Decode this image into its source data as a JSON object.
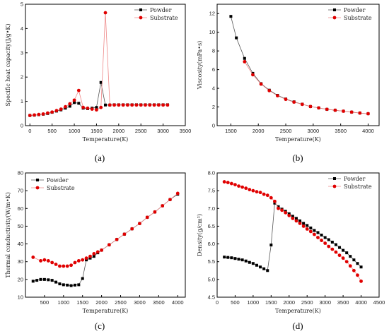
{
  "chart_data": [
    {
      "id": "a",
      "type": "line",
      "caption": "(a)",
      "xlabel": "Temperature(K)",
      "ylabel": "Specific heat capacity(J/g•K)",
      "xlim": [
        -100,
        3500
      ],
      "ylim": [
        0,
        5
      ],
      "xticks": [
        0,
        500,
        1000,
        1500,
        2000,
        2500,
        3000,
        3500
      ],
      "yticks": [
        0,
        1,
        2,
        3,
        4,
        5
      ],
      "legend_position": "top-right",
      "series": [
        {
          "name": "Powder",
          "color": "#000000",
          "marker": "square",
          "x": [
            0,
            100,
            200,
            300,
            400,
            500,
            600,
            700,
            800,
            900,
            1000,
            1100,
            1200,
            1300,
            1400,
            1500,
            1600,
            1700,
            1800,
            1900,
            2000,
            2100,
            2200,
            2300,
            2400,
            2500,
            2600,
            2700,
            2800,
            2900,
            3000,
            3100
          ],
          "y": [
            0.42,
            0.43,
            0.45,
            0.47,
            0.5,
            0.55,
            0.6,
            0.65,
            0.72,
            0.8,
            0.95,
            0.92,
            0.72,
            0.7,
            0.72,
            0.75,
            1.78,
            0.85,
            0.85,
            0.86,
            0.86,
            0.86,
            0.86,
            0.86,
            0.86,
            0.86,
            0.86,
            0.86,
            0.86,
            0.86,
            0.86,
            0.86
          ]
        },
        {
          "name": "Substrate",
          "color": "#e00000",
          "marker": "circle",
          "x": [
            0,
            100,
            200,
            300,
            400,
            500,
            600,
            700,
            800,
            900,
            1000,
            1100,
            1200,
            1300,
            1400,
            1500,
            1600,
            1700,
            1800,
            1900,
            2000,
            2100,
            2200,
            2300,
            2400,
            2500,
            2600,
            2700,
            2800,
            2900,
            3000,
            3100
          ],
          "y": [
            0.42,
            0.44,
            0.46,
            0.48,
            0.52,
            0.56,
            0.62,
            0.68,
            0.78,
            0.9,
            1.05,
            1.45,
            0.75,
            0.72,
            0.68,
            0.65,
            0.75,
            4.65,
            0.85,
            0.85,
            0.85,
            0.85,
            0.85,
            0.85,
            0.85,
            0.85,
            0.85,
            0.85,
            0.85,
            0.85,
            0.85,
            0.85
          ]
        }
      ]
    },
    {
      "id": "b",
      "type": "line",
      "caption": "(b)",
      "xlabel": "Temperature(K)",
      "ylabel": "Viscosity(mPa•s)",
      "xlim": [
        1250,
        4200
      ],
      "ylim": [
        0,
        13
      ],
      "xticks": [
        1500,
        2000,
        2500,
        3000,
        3500,
        4000
      ],
      "yticks": [
        0,
        2,
        4,
        6,
        8,
        10,
        12
      ],
      "legend_position": "top-right",
      "series": [
        {
          "name": "Powder",
          "color": "#000000",
          "marker": "square",
          "x": [
            1500,
            1600,
            1750,
            1900,
            2050,
            2200,
            2350,
            2500,
            2650,
            2800,
            2950,
            3100,
            3250,
            3400,
            3550,
            3700,
            3850,
            4000
          ],
          "y": [
            11.7,
            9.4,
            7.2,
            5.6,
            4.5,
            3.8,
            3.25,
            2.85,
            2.55,
            2.3,
            2.05,
            1.9,
            1.75,
            1.65,
            1.55,
            1.45,
            1.35,
            1.28
          ]
        },
        {
          "name": "Substrate",
          "color": "#e00000",
          "marker": "circle",
          "x": [
            1750,
            1900,
            2050,
            2200,
            2350,
            2500,
            2650,
            2800,
            2950,
            3100,
            3250,
            3400,
            3550,
            3700,
            3850,
            4000
          ],
          "y": [
            6.85,
            5.45,
            4.45,
            3.75,
            3.2,
            2.82,
            2.52,
            2.28,
            2.05,
            1.9,
            1.75,
            1.65,
            1.55,
            1.45,
            1.35,
            1.28
          ]
        }
      ]
    },
    {
      "id": "c",
      "type": "line",
      "caption": "(c)",
      "xlabel": "Temperature(K)",
      "ylabel": "Thermal conductivity(W/m•K)",
      "xlim": [
        0,
        4200
      ],
      "ylim": [
        10,
        80
      ],
      "xticks": [
        500,
        1000,
        1500,
        2000,
        2500,
        3000,
        3500,
        4000
      ],
      "yticks": [
        10,
        20,
        30,
        40,
        50,
        60,
        70,
        80
      ],
      "legend_position": "top-left",
      "series": [
        {
          "name": "Powder",
          "color": "#000000",
          "marker": "square",
          "x": [
            200,
            300,
            400,
            500,
            600,
            700,
            800,
            900,
            1000,
            1100,
            1200,
            1300,
            1400,
            1500,
            1600,
            1700,
            1800,
            1900,
            2000,
            2200,
            2400,
            2600,
            2800,
            3000,
            3200,
            3400,
            3600,
            3800,
            4000
          ],
          "y": [
            19,
            19.5,
            20,
            20,
            19.8,
            19.5,
            18.5,
            17.5,
            17,
            16.8,
            16.5,
            16.8,
            17,
            20.5,
            31,
            32,
            33,
            35,
            36.5,
            39.5,
            42.5,
            45.5,
            48.5,
            51.5,
            55,
            58,
            61.5,
            65,
            68
          ]
        },
        {
          "name": "Substrate",
          "color": "#e00000",
          "marker": "circle",
          "x": [
            200,
            400,
            500,
            600,
            700,
            800,
            900,
            1000,
            1100,
            1200,
            1300,
            1400,
            1500,
            1600,
            1700,
            1800,
            1900,
            2000,
            2200,
            2400,
            2600,
            2800,
            3000,
            3200,
            3400,
            3600,
            3800,
            4000
          ],
          "y": [
            32.5,
            30.5,
            31,
            30.5,
            29.5,
            28.5,
            27.5,
            27.5,
            27.5,
            28,
            29.5,
            30.5,
            31,
            32,
            33,
            34.5,
            35.5,
            36.5,
            39.5,
            42.5,
            45.5,
            48.5,
            51.5,
            55,
            58,
            61.5,
            65,
            68.5
          ]
        }
      ]
    },
    {
      "id": "d",
      "type": "line",
      "caption": "(d)",
      "xlabel": "Temperature(K)",
      "ylabel": "Density(g/cm³)",
      "xlim": [
        0,
        4500
      ],
      "ylim": [
        4.5,
        8.0
      ],
      "xticks": [
        0,
        500,
        1000,
        1500,
        2000,
        2500,
        3000,
        3500,
        4000,
        4500
      ],
      "yticks": [
        4.5,
        5.0,
        5.5,
        6.0,
        6.5,
        7.0,
        7.5,
        8.0
      ],
      "legend_position": "top-right",
      "series": [
        {
          "name": "Powder",
          "color": "#000000",
          "marker": "square",
          "x": [
            200,
            300,
            400,
            500,
            600,
            700,
            800,
            900,
            1000,
            1100,
            1200,
            1300,
            1400,
            1500,
            1600,
            1700,
            1800,
            1900,
            2000,
            2100,
            2200,
            2300,
            2400,
            2500,
            2600,
            2700,
            2800,
            2900,
            3000,
            3100,
            3200,
            3300,
            3400,
            3500,
            3600,
            3700,
            3800,
            3900,
            4000
          ],
          "y": [
            5.63,
            5.62,
            5.61,
            5.59,
            5.57,
            5.55,
            5.52,
            5.48,
            5.45,
            5.4,
            5.35,
            5.3,
            5.25,
            5.97,
            7.15,
            7.05,
            6.98,
            6.92,
            6.85,
            6.78,
            6.72,
            6.65,
            6.58,
            6.52,
            6.45,
            6.38,
            6.32,
            6.25,
            6.18,
            6.12,
            6.05,
            5.98,
            5.9,
            5.82,
            5.75,
            5.65,
            5.55,
            5.45,
            5.35
          ]
        },
        {
          "name": "Substrate",
          "color": "#e00000",
          "marker": "circle",
          "x": [
            200,
            300,
            400,
            500,
            600,
            700,
            800,
            900,
            1000,
            1100,
            1200,
            1300,
            1400,
            1500,
            1600,
            1700,
            1800,
            1900,
            2000,
            2100,
            2200,
            2300,
            2400,
            2500,
            2600,
            2700,
            2800,
            2900,
            3000,
            3100,
            3200,
            3300,
            3400,
            3500,
            3600,
            3700,
            3800,
            3900,
            4000
          ],
          "y": [
            7.75,
            7.73,
            7.7,
            7.67,
            7.63,
            7.6,
            7.57,
            7.53,
            7.5,
            7.47,
            7.45,
            7.4,
            7.37,
            7.3,
            7.2,
            7.0,
            6.95,
            6.88,
            6.8,
            6.72,
            6.65,
            6.58,
            6.5,
            6.42,
            6.35,
            6.27,
            6.18,
            6.1,
            6.02,
            5.93,
            5.85,
            5.77,
            5.68,
            5.6,
            5.5,
            5.38,
            5.25,
            5.12,
            4.95
          ]
        }
      ]
    }
  ]
}
